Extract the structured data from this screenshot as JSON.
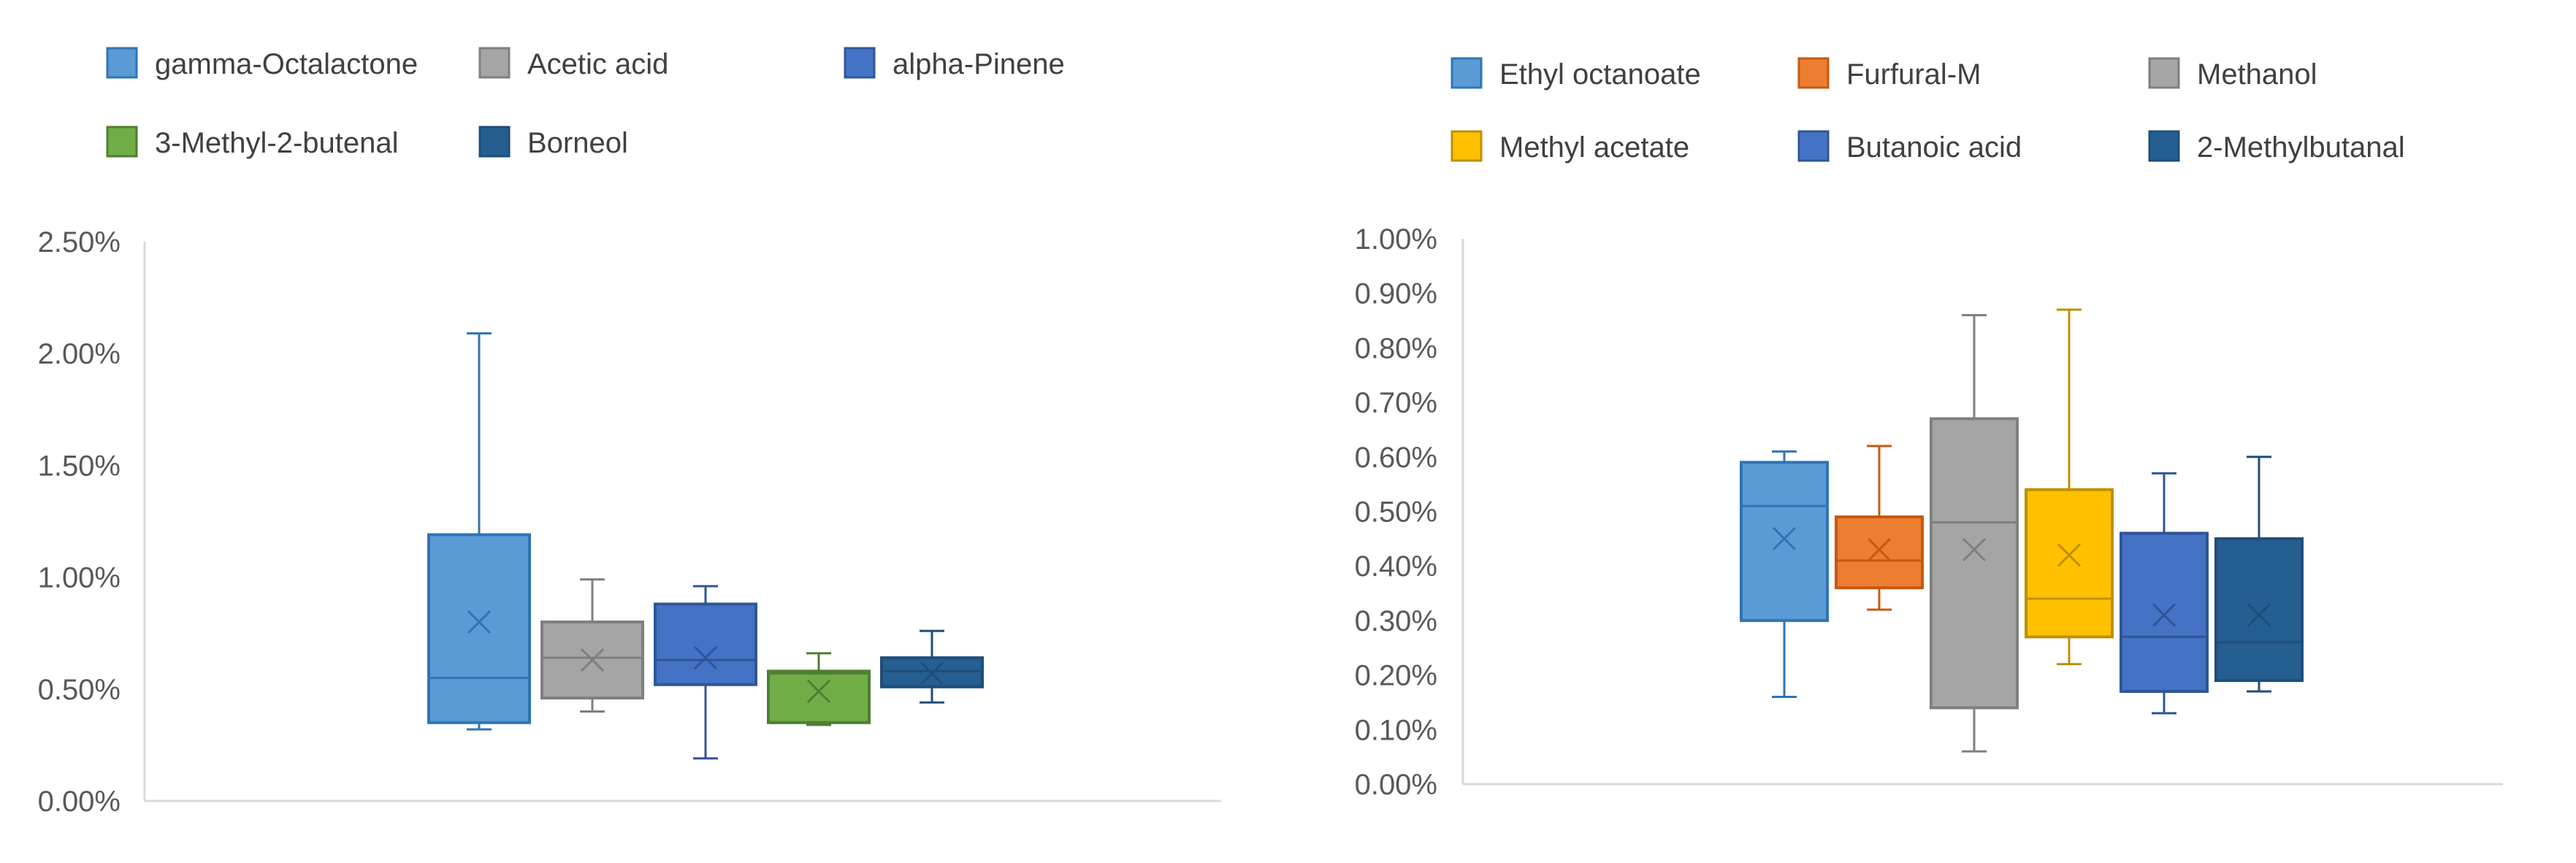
{
  "chart_data": [
    {
      "type": "box",
      "legend_position": "top",
      "y_tick_labels": [
        "0.00%",
        "0.50%",
        "1.00%",
        "1.50%",
        "2.00%",
        "2.50%"
      ],
      "y_ticks": [
        0,
        0.005,
        0.01,
        0.015,
        0.02,
        0.025
      ],
      "ylim": [
        0,
        0.025
      ],
      "grid": false,
      "series": [
        {
          "name": "gamma-Octalactone",
          "color": "#5B9BD5",
          "stroke": "#2E75B6",
          "min": 0.0032,
          "q1": 0.0035,
          "median": 0.0055,
          "q3": 0.0119,
          "max": 0.0209,
          "mean": 0.008
        },
        {
          "name": "Acetic acid",
          "color": "#A5A5A5",
          "stroke": "#7F7F7F",
          "min": 0.004,
          "q1": 0.0046,
          "median": 0.0064,
          "q3": 0.008,
          "max": 0.0099,
          "mean": 0.0063
        },
        {
          "name": "alpha-Pinene",
          "color": "#4472C4",
          "stroke": "#2F5597",
          "min": 0.0019,
          "q1": 0.0052,
          "median": 0.0063,
          "q3": 0.0088,
          "max": 0.0096,
          "mean": 0.0064
        },
        {
          "name": "3-Methyl-2-butenal",
          "color": "#70AD47",
          "stroke": "#507E32",
          "min": 0.0034,
          "q1": 0.0035,
          "median": 0.0057,
          "q3": 0.0058,
          "max": 0.0066,
          "mean": 0.0049
        },
        {
          "name": "Borneol",
          "color": "#255E91",
          "stroke": "#1F4E79",
          "min": 0.0044,
          "q1": 0.0051,
          "median": 0.0058,
          "q3": 0.0064,
          "max": 0.0076,
          "mean": 0.0057
        }
      ]
    },
    {
      "type": "box",
      "legend_position": "top",
      "y_tick_labels": [
        "0.00%",
        "0.10%",
        "0.20%",
        "0.30%",
        "0.40%",
        "0.50%",
        "0.60%",
        "0.70%",
        "0.80%",
        "0.90%",
        "1.00%"
      ],
      "y_ticks": [
        0,
        0.001,
        0.002,
        0.003,
        0.004,
        0.005,
        0.006,
        0.007,
        0.008,
        0.009,
        0.01
      ],
      "ylim": [
        0,
        0.01
      ],
      "grid": false,
      "series": [
        {
          "name": "Ethyl octanoate",
          "color": "#5B9BD5",
          "stroke": "#2E75B6",
          "min": 0.0016,
          "q1": 0.003,
          "median": 0.0051,
          "q3": 0.0059,
          "max": 0.0061,
          "mean": 0.0045
        },
        {
          "name": "Furfural-M",
          "color": "#ED7D31",
          "stroke": "#C55A11",
          "min": 0.0032,
          "q1": 0.0036,
          "median": 0.0041,
          "q3": 0.0049,
          "max": 0.0062,
          "mean": 0.0043
        },
        {
          "name": "Methanol",
          "color": "#A5A5A5",
          "stroke": "#7F7F7F",
          "min": 0.0006,
          "q1": 0.0014,
          "median": 0.0048,
          "q3": 0.0067,
          "max": 0.0086,
          "mean": 0.0043
        },
        {
          "name": "Methyl acetate",
          "color": "#FFC000",
          "stroke": "#BF9000",
          "min": 0.0022,
          "q1": 0.0027,
          "median": 0.0034,
          "q3": 0.0054,
          "max": 0.0087,
          "mean": 0.0042
        },
        {
          "name": "Butanoic acid",
          "color": "#4472C4",
          "stroke": "#2F5597",
          "min": 0.0013,
          "q1": 0.0017,
          "median": 0.0027,
          "q3": 0.0046,
          "max": 0.0057,
          "mean": 0.0031
        },
        {
          "name": "2-Methylbutanal",
          "color": "#255E91",
          "stroke": "#1F4E79",
          "min": 0.0017,
          "q1": 0.0019,
          "median": 0.0026,
          "q3": 0.0045,
          "max": 0.006,
          "mean": 0.0031
        }
      ]
    }
  ]
}
